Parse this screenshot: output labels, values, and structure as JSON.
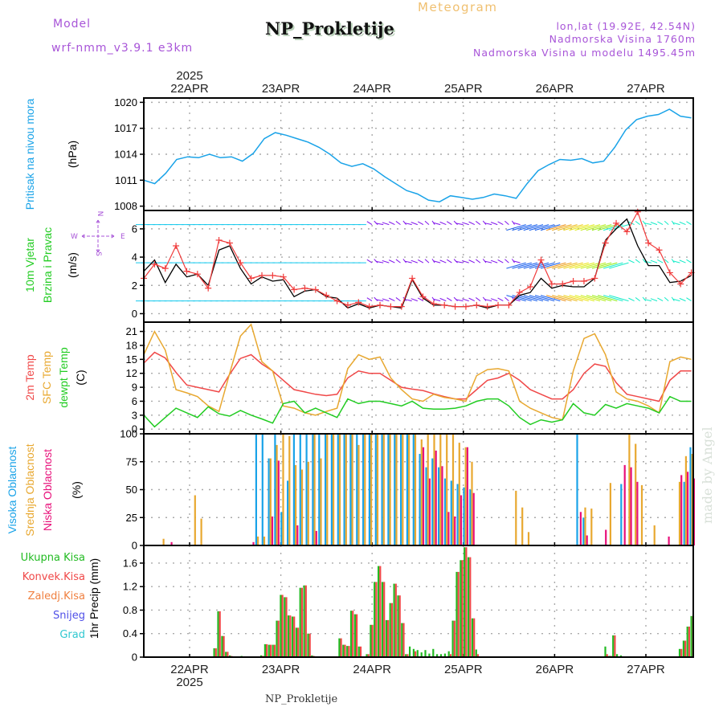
{
  "header": {
    "model_label": "Model",
    "model_name": "wrf-nmm_v3.9.1  e3km",
    "station_title": "NP_Prokletije",
    "chart_type": "Meteogram",
    "location": "lon,lat (19.92E, 42.54N)",
    "altitude": "Nadmorska Visina 1760m",
    "model_altitude": "Nadmorska Visina u modelu 1495.45m"
  },
  "footer": {
    "station": "NP_Prokletije",
    "credit": "made by Angel"
  },
  "time_axis": {
    "year": "2025",
    "days": [
      "22APR",
      "23APR",
      "24APR",
      "25APR",
      "26APR",
      "27APR"
    ],
    "start_label": "21APR 12h",
    "step_hours": 3
  },
  "colors": {
    "pressure": "#1aa3e8",
    "temp2m": "#f04848",
    "sfc_temp": "#e8a830",
    "dewpoint": "#22cc22",
    "high_cloud": "#1aa3e8",
    "mid_cloud": "#e8a830",
    "low_cloud": "#e8107a",
    "total_precip": "#22bb22",
    "conv_precip": "#f04848",
    "wind_speed": "#000000",
    "wind_gust": "#f03c3c",
    "compass": "#a855d8"
  },
  "chart_data": [
    {
      "type": "line",
      "panel": "pressure",
      "ylabel_left": "Pritisak na nivou mora",
      "units": "(hPa)",
      "yticks": [
        "1008",
        "1011",
        "1014",
        "1017",
        "1020"
      ],
      "ylim": [
        1007.5,
        1020.5
      ],
      "grid": true,
      "series": [
        {
          "name": "Pritisak na nivou mora",
          "color_key": "pressure",
          "values": [
            1011.0,
            1010.6,
            1011.8,
            1013.4,
            1013.7,
            1013.6,
            1014.0,
            1013.6,
            1013.7,
            1013.2,
            1014.1,
            1015.8,
            1016.5,
            1016.2,
            1015.8,
            1015.4,
            1014.8,
            1014.0,
            1013.0,
            1012.6,
            1012.9,
            1012.3,
            1011.4,
            1010.6,
            1009.8,
            1009.4,
            1008.7,
            1008.5,
            1009.2,
            1009.0,
            1008.8,
            1009.0,
            1009.4,
            1009.2,
            1008.9,
            1010.6,
            1012.1,
            1012.8,
            1013.4,
            1013.3,
            1013.5,
            1013.0,
            1013.2,
            1014.8,
            1016.8,
            1018.0,
            1018.4,
            1018.6,
            1019.2,
            1018.4,
            1018.2
          ]
        }
      ]
    },
    {
      "type": "line",
      "panel": "wind",
      "ylabel_left": [
        "10m Vjetar",
        "Brzina i Pravac"
      ],
      "units": "(m/s)",
      "compass": {
        "n": "N",
        "s": "S",
        "w": "W",
        "e": "E"
      },
      "yticks": [
        "0",
        "2",
        "4",
        "6"
      ],
      "ylim": [
        -0.6,
        7.3
      ],
      "grid": true,
      "barb_levels_ms": [
        0.9,
        3.6,
        6.3
      ],
      "series": [
        {
          "name": "speed",
          "color_key": "wind_speed",
          "values": [
            3.0,
            3.8,
            2.2,
            3.5,
            2.6,
            2.8,
            2.0,
            4.5,
            4.8,
            3.2,
            2.1,
            2.6,
            2.3,
            2.4,
            1.2,
            1.6,
            1.7,
            1.2,
            1.1,
            0.4,
            0.7,
            0.4,
            0.6,
            0.5,
            0.4,
            2.4,
            1.1,
            0.6,
            0.6,
            0.5,
            0.5,
            0.6,
            0.4,
            0.6,
            0.6,
            1.3,
            1.5,
            2.5,
            1.8,
            2.0,
            1.9,
            1.9,
            2.5,
            5.2,
            6.0,
            6.7,
            4.8,
            3.4,
            3.4,
            2.2,
            2.3,
            2.7
          ]
        },
        {
          "name": "gust",
          "color_key": "wind_gust",
          "values": [
            2.5,
            3.5,
            3.2,
            4.8,
            3.0,
            2.8,
            1.8,
            5.2,
            5.0,
            3.6,
            2.5,
            2.7,
            2.7,
            2.6,
            1.7,
            1.8,
            1.7,
            1.3,
            0.9,
            0.6,
            0.8,
            0.5,
            0.6,
            0.5,
            0.5,
            2.5,
            1.2,
            0.7,
            0.6,
            0.5,
            0.5,
            0.6,
            0.5,
            0.6,
            0.6,
            1.5,
            1.9,
            3.8,
            2.1,
            2.1,
            2.3,
            2.3,
            2.5,
            5.0,
            6.4,
            5.8,
            7.2,
            5.0,
            4.5,
            2.9,
            2.1,
            2.9
          ]
        }
      ]
    },
    {
      "type": "line",
      "panel": "temperature",
      "ylabel_left": [
        "2m Temp",
        "SFC Temp",
        "dewpt Temp"
      ],
      "units": "(C)",
      "yticks": [
        "0",
        "3",
        "6",
        "9",
        "12",
        "15",
        "18",
        "21"
      ],
      "ylim": [
        -1,
        23
      ],
      "grid": true,
      "series": [
        {
          "name": "2m Temp",
          "color_key": "temp2m",
          "values": [
            14.2,
            16.5,
            15.3,
            12.2,
            9.5,
            9.0,
            8.5,
            8.0,
            11.8,
            15.2,
            16.0,
            14.0,
            12.5,
            10.5,
            8.5,
            8.0,
            7.5,
            7.2,
            7.5,
            11.0,
            12.5,
            12.0,
            12.0,
            10.5,
            9.0,
            8.6,
            8.3,
            7.6,
            7.0,
            6.5,
            6.5,
            8.5,
            10.5,
            11.0,
            12.0,
            10.5,
            8.5,
            7.5,
            6.5,
            6.5,
            8.5,
            12.0,
            14.0,
            13.5,
            10.0,
            7.5,
            7.0,
            6.5,
            6.0,
            10.5,
            12.5,
            12.5
          ]
        },
        {
          "name": "SFC Temp",
          "color_key": "sfc_temp",
          "values": [
            16.0,
            21.0,
            17.0,
            8.5,
            7.8,
            7.0,
            5.0,
            3.8,
            12.0,
            20.0,
            22.5,
            14.5,
            12.5,
            5.0,
            4.5,
            3.5,
            3.0,
            3.8,
            4.5,
            13.0,
            16.0,
            15.0,
            15.5,
            11.0,
            8.5,
            6.5,
            6.0,
            7.5,
            6.8,
            6.5,
            6.0,
            11.5,
            12.8,
            13.0,
            12.5,
            6.0,
            4.5,
            3.5,
            2.5,
            2.0,
            12.5,
            19.5,
            20.5,
            16.0,
            8.0,
            6.5,
            6.0,
            5.0,
            3.5,
            14.5,
            15.5,
            15.0
          ]
        },
        {
          "name": "dewpt Temp",
          "color_key": "dewpoint",
          "values": [
            3.0,
            0.5,
            2.5,
            4.5,
            3.5,
            2.5,
            4.8,
            3.3,
            2.8,
            4.0,
            3.0,
            2.2,
            1.3,
            5.5,
            6.0,
            3.5,
            4.5,
            3.5,
            2.5,
            6.5,
            5.5,
            6.0,
            6.0,
            5.5,
            5.0,
            6.0,
            4.5,
            4.3,
            4.3,
            4.5,
            5.0,
            6.0,
            6.5,
            6.5,
            5.0,
            2.5,
            1.0,
            2.0,
            1.5,
            2.0,
            5.5,
            3.5,
            3.0,
            5.3,
            4.5,
            5.5,
            5.0,
            4.5,
            3.5,
            7.0,
            6.0,
            6.0
          ]
        }
      ]
    },
    {
      "type": "bar",
      "panel": "clouds",
      "ylabel_left": [
        "Visoka Oblacnost",
        "Srednja Oblacnost",
        "Niska Oblacnost"
      ],
      "units": "(%)",
      "yticks": [
        "0",
        "25",
        "50",
        "75",
        "100"
      ],
      "ylim": [
        0,
        100
      ],
      "grid": true,
      "series": [
        {
          "name": "Visoka Oblacnost",
          "color_key": "high_cloud",
          "values": [
            0,
            0,
            0,
            0,
            0,
            0,
            0,
            0,
            0,
            0,
            0,
            0,
            0,
            0,
            0,
            0,
            0,
            0,
            100,
            100,
            78,
            100,
            30,
            58,
            100,
            100,
            100,
            100,
            100,
            100,
            100,
            100,
            100,
            100,
            100,
            100,
            100,
            100,
            100,
            100,
            100,
            100,
            100,
            100,
            82,
            70,
            78,
            70,
            60,
            58,
            55,
            52,
            50,
            0,
            0,
            0,
            0,
            0,
            0,
            0,
            0,
            0,
            0,
            0,
            0,
            0,
            0,
            0,
            0,
            100,
            25,
            0,
            0,
            0,
            0,
            0,
            55,
            0,
            0,
            0,
            0,
            0,
            0,
            0,
            0,
            0,
            57,
            88
          ]
        },
        {
          "name": "Srednja Oblacnost",
          "color_key": "mid_cloud",
          "values": [
            0,
            0,
            0,
            6,
            0,
            0,
            0,
            0,
            45,
            24,
            0,
            0,
            0,
            0,
            0,
            0,
            0,
            0,
            8,
            8,
            78,
            90,
            100,
            98,
            72,
            68,
            75,
            100,
            78,
            100,
            100,
            100,
            100,
            100,
            90,
            100,
            100,
            100,
            100,
            100,
            100,
            100,
            100,
            100,
            95,
            100,
            100,
            100,
            100,
            100,
            92,
            88,
            75,
            0,
            0,
            0,
            0,
            0,
            0,
            49,
            34,
            12,
            0,
            0,
            0,
            0,
            0,
            0,
            0,
            0,
            34,
            33,
            0,
            0,
            56,
            0,
            0,
            100,
            91,
            54,
            0,
            18,
            0,
            0,
            0,
            57,
            80,
            82
          ]
        },
        {
          "name": "Niska Oblacnost",
          "color_key": "low_cloud",
          "values": [
            0,
            0,
            0,
            0,
            3,
            0,
            0,
            0,
            0,
            0,
            0,
            0,
            0,
            0,
            0,
            0,
            0,
            3,
            0,
            0,
            26,
            76,
            0,
            0,
            18,
            0,
            0,
            13,
            0,
            0,
            0,
            0,
            0,
            0,
            0,
            0,
            0,
            0,
            0,
            0,
            0,
            0,
            0,
            0,
            88,
            60,
            85,
            71,
            30,
            26,
            45,
            88,
            47,
            0,
            0,
            0,
            0,
            0,
            0,
            0,
            0,
            0,
            0,
            0,
            0,
            0,
            0,
            0,
            0,
            30,
            9,
            0,
            0,
            14,
            0,
            0,
            72,
            70,
            57,
            0,
            0,
            0,
            0,
            8,
            0,
            63,
            66,
            60
          ]
        }
      ]
    },
    {
      "type": "bar",
      "panel": "precipitation",
      "ylabel_left": "1hr Precip (mm)",
      "legend": [
        "Ukupna Kisa",
        "Konvek.Kisa",
        "Zaledj.Kisa",
        "Snijeg",
        "Grad"
      ],
      "legend_colors": [
        "#22bb22",
        "#f04848",
        "#f08040",
        "#5050e8",
        "#30c8d0"
      ],
      "yticks": [
        "0",
        "0.4",
        "0.8",
        "1.2",
        "1.6"
      ],
      "ylim": [
        0,
        1.9
      ],
      "grid": true,
      "series": [
        {
          "name": "Ukupna Kisa",
          "color_key": "total_precip",
          "values": [
            0,
            0,
            0,
            0,
            0,
            0,
            0,
            0,
            0,
            0,
            0,
            0,
            0,
            0,
            0,
            0,
            0,
            0,
            0.15,
            0.78,
            0.36,
            0.09,
            0.03,
            0,
            0,
            0.02,
            0,
            0,
            0,
            0,
            0.03,
            0.22,
            0.21,
            0.21,
            0.62,
            1.06,
            1.02,
            0.71,
            0.69,
            0.5,
            1.18,
            1.22,
            0.4,
            0.03,
            0,
            0,
            0,
            0,
            0,
            0,
            0.32,
            0.21,
            0.19,
            0.79,
            0.73,
            0.18,
            0,
            0.05,
            0.55,
            1.28,
            1.55,
            1.28,
            0.63,
            0.92,
            1.25,
            1.05,
            0.58,
            0.05,
            0.18,
            0.14,
            0.12,
            0.08,
            0.12,
            0.06,
            0.14,
            0.05,
            0.05,
            0.06,
            0.1,
            0.62,
            1.45,
            1.65,
            1.87,
            1.7,
            0.66,
            0.13,
            0,
            0,
            0,
            0,
            0,
            0,
            0,
            0,
            0,
            0,
            0,
            0,
            0,
            0,
            0,
            0,
            0,
            0,
            0,
            0,
            0,
            0,
            0,
            0,
            0,
            0,
            0,
            0,
            0,
            0,
            0,
            0,
            0.18,
            0.02,
            0.37,
            0.05,
            0.03,
            0,
            0,
            0,
            0,
            0,
            0,
            0,
            0,
            0,
            0,
            0,
            0,
            0,
            0,
            0.14,
            0.28,
            0.52,
            0.7
          ]
        },
        {
          "name": "Konvek.Kisa",
          "color_key": "conv_precip",
          "values": [
            0,
            0,
            0,
            0,
            0,
            0,
            0,
            0,
            0,
            0,
            0,
            0,
            0,
            0,
            0,
            0,
            0,
            0,
            0.15,
            0.78,
            0.36,
            0.09,
            0.02,
            0,
            0,
            0.01,
            0,
            0,
            0,
            0,
            0.02,
            0.22,
            0.21,
            0.21,
            0.62,
            1.06,
            1.02,
            0.71,
            0.69,
            0.5,
            1.18,
            1.22,
            0.4,
            0.02,
            0,
            0,
            0,
            0,
            0,
            0,
            0.32,
            0.21,
            0.19,
            0.79,
            0.73,
            0.18,
            0,
            0.05,
            0.55,
            1.28,
            1.55,
            1.28,
            0.63,
            0.92,
            1.25,
            1.05,
            0.58,
            0.05,
            0,
            0.1,
            0,
            0,
            0,
            0,
            0,
            0,
            0,
            0,
            0.05,
            0.62,
            1.45,
            1.65,
            1.87,
            1.7,
            0.66,
            0.05,
            0,
            0,
            0,
            0,
            0,
            0,
            0,
            0,
            0,
            0,
            0,
            0,
            0,
            0,
            0,
            0,
            0,
            0,
            0,
            0,
            0,
            0,
            0,
            0,
            0,
            0,
            0,
            0,
            0,
            0,
            0,
            0,
            0.05,
            0.02,
            0.37,
            0,
            0,
            0,
            0,
            0,
            0,
            0,
            0,
            0,
            0,
            0,
            0,
            0,
            0,
            0,
            0,
            0.14,
            0.28,
            0.52,
            0.7
          ]
        }
      ]
    }
  ]
}
